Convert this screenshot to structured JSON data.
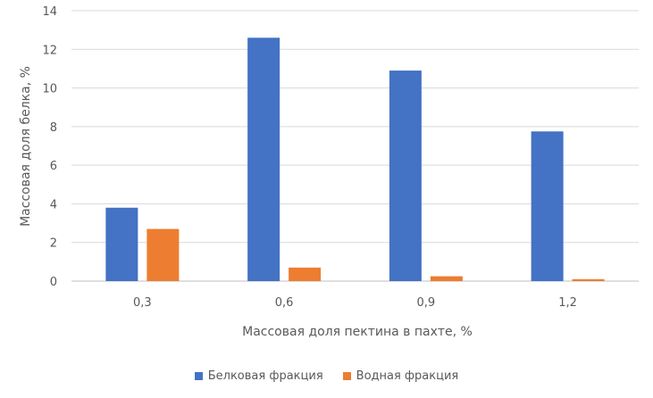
{
  "chart_data": {
    "type": "bar",
    "categories": [
      "0,3",
      "0,6",
      "0,9",
      "1,2"
    ],
    "series": [
      {
        "name": "Белковая фракция",
        "values": [
          3.8,
          12.6,
          10.9,
          7.75
        ],
        "color": "#4472C4"
      },
      {
        "name": "Водная фракция",
        "values": [
          2.7,
          0.7,
          0.25,
          0.1
        ],
        "color": "#ED7D31"
      }
    ],
    "xlabel": "Массовая доля пектина в пахте, %",
    "ylabel": "Массовая доля белка, %",
    "ylim": [
      0,
      14
    ],
    "yticks": [
      "0",
      "2",
      "4",
      "6",
      "8",
      "10",
      "12",
      "14"
    ],
    "grid": true,
    "legend_position": "bottom"
  }
}
